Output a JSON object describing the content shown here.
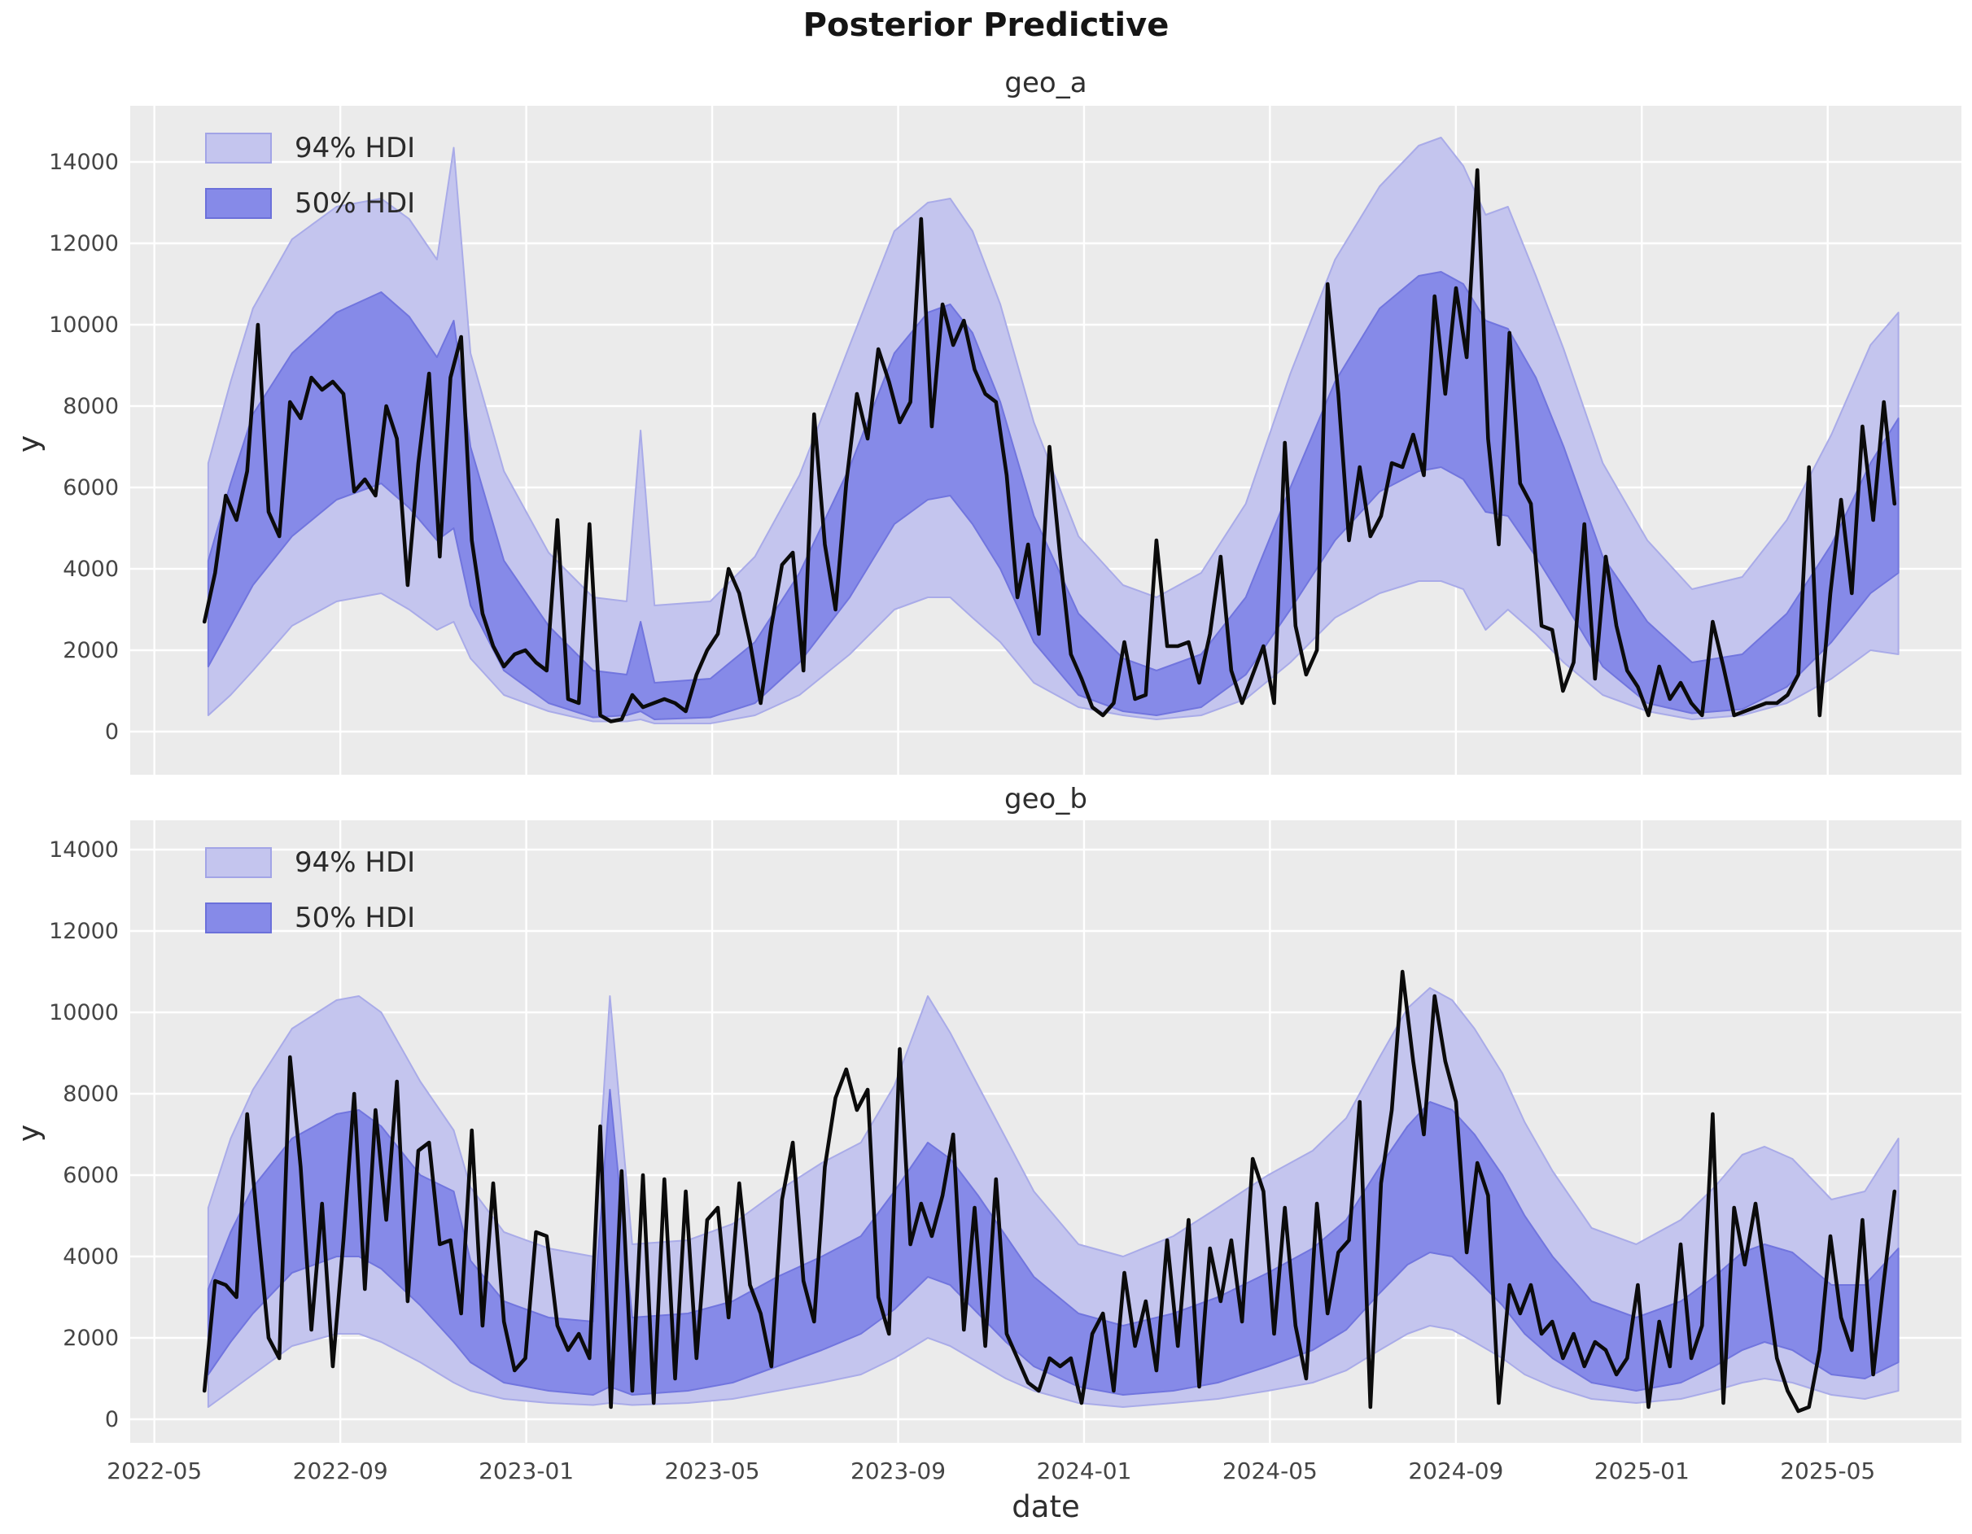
{
  "figure": {
    "title": "Posterior Predictive",
    "xlabel": "date"
  },
  "legend": {
    "hdi94": "94% HDI",
    "hdi50": "50% HDI"
  },
  "colors": {
    "plot_bg": "#ebebeb",
    "grid": "#ffffff",
    "band94": "#c4c5ee",
    "band94_edge": "#a9abe8",
    "band50": "#868ae8",
    "band50_edge": "#7175de",
    "observed": "#0b0b0b",
    "tick_text": "#454545",
    "title_text": "#2e2e2e"
  },
  "chart_data": [
    {
      "type": "line",
      "title": "geo_a",
      "ylabel": "y",
      "legend": [
        "94% HDI",
        "50% HDI"
      ],
      "x_axis": {
        "range": [
          2022.29,
          2025.573
        ],
        "ticks": [
          2022.3333,
          2022.6667,
          2023.0,
          2023.3333,
          2023.6667,
          2024.0,
          2024.3333,
          2024.6667,
          2025.0,
          2025.3333
        ],
        "tick_labels": [
          "2022-05",
          "2022-09",
          "2023-01",
          "2023-05",
          "2023-09",
          "2024-01",
          "2024-05",
          "2024-09",
          "2025-01",
          "2025-05"
        ]
      },
      "y_axis": {
        "range": [
          -1060,
          15380
        ],
        "ticks": [
          0,
          2000,
          4000,
          6000,
          8000,
          10000,
          12000,
          14000
        ]
      },
      "observed": {
        "name": "y",
        "t_start": 2022.423,
        "t_step": 0.019178,
        "values": [
          2700,
          3900,
          5800,
          5200,
          6400,
          10000,
          5400,
          4800,
          8100,
          7700,
          8700,
          8400,
          8600,
          8300,
          5900,
          6200,
          5800,
          8000,
          7200,
          3600,
          6600,
          8800,
          4300,
          8700,
          9700,
          4700,
          2900,
          2100,
          1600,
          1900,
          2000,
          1700,
          1500,
          5200,
          800,
          700,
          5100,
          400,
          250,
          300,
          900,
          600,
          700,
          800,
          700,
          500,
          1400,
          2000,
          2400,
          4000,
          3400,
          2200,
          700,
          2600,
          4100,
          4400,
          1500,
          7800,
          4600,
          3000,
          6100,
          8300,
          7200,
          9400,
          8600,
          7600,
          8100,
          12600,
          7500,
          10500,
          9500,
          10100,
          8900,
          8300,
          8100,
          6300,
          3300,
          4600,
          2400,
          7000,
          4300,
          1900,
          1300,
          600,
          400,
          700,
          2200,
          800,
          900,
          4700,
          2100,
          2100,
          2200,
          1200,
          2400,
          4300,
          1500,
          700,
          1400,
          2100,
          700,
          7100,
          2600,
          1400,
          2000,
          11000,
          8300,
          4700,
          6500,
          4800,
          5300,
          6600,
          6500,
          7300,
          6300,
          10700,
          8300,
          10900,
          9200,
          13800,
          7200,
          4600,
          9800,
          6100,
          5600,
          2600,
          2500,
          1000,
          1700,
          5100,
          1300,
          4300,
          2600,
          1500,
          1100,
          400,
          1600,
          800,
          1200,
          700,
          400,
          2700,
          1600,
          400,
          500,
          600,
          700,
          700,
          900,
          1400,
          6500,
          400,
          3400,
          5700,
          3400,
          7500,
          5200,
          8100,
          5600
        ]
      },
      "hdi": {
        "columns": [
          "t",
          "lower_94",
          "lower_50",
          "upper_50",
          "upper_94"
        ],
        "rows": [
          [
            2022.43,
            400,
            1600,
            4200,
            6600
          ],
          [
            2022.47,
            900,
            2600,
            6100,
            8600
          ],
          [
            2022.51,
            1500,
            3600,
            7800,
            10400
          ],
          [
            2022.58,
            2600,
            4800,
            9300,
            12100
          ],
          [
            2022.66,
            3200,
            5700,
            10300,
            12900
          ],
          [
            2022.74,
            3400,
            6100,
            10800,
            13100
          ],
          [
            2022.79,
            3000,
            5500,
            10200,
            12600
          ],
          [
            2022.84,
            2500,
            4700,
            9200,
            11600
          ],
          [
            2022.87,
            2700,
            5000,
            10100,
            14350
          ],
          [
            2022.9,
            1800,
            3100,
            7000,
            9300
          ],
          [
            2022.96,
            900,
            1500,
            4200,
            6400
          ],
          [
            2023.04,
            500,
            700,
            2600,
            4400
          ],
          [
            2023.12,
            250,
            350,
            1500,
            3300
          ],
          [
            2023.18,
            250,
            400,
            1400,
            3200
          ],
          [
            2023.205,
            300,
            500,
            2700,
            7400
          ],
          [
            2023.23,
            200,
            300,
            1200,
            3100
          ],
          [
            2023.33,
            200,
            350,
            1300,
            3200
          ],
          [
            2023.41,
            400,
            700,
            2200,
            4300
          ],
          [
            2023.49,
            900,
            1700,
            3900,
            6300
          ],
          [
            2023.58,
            1900,
            3300,
            6500,
            9500
          ],
          [
            2023.66,
            3000,
            5100,
            9300,
            12300
          ],
          [
            2023.72,
            3300,
            5700,
            10300,
            13000
          ],
          [
            2023.76,
            3300,
            5800,
            10500,
            13100
          ],
          [
            2023.8,
            2800,
            5100,
            9800,
            12300
          ],
          [
            2023.85,
            2200,
            4000,
            8100,
            10500
          ],
          [
            2023.91,
            1200,
            2200,
            5300,
            7600
          ],
          [
            2023.99,
            600,
            900,
            2900,
            4800
          ],
          [
            2024.07,
            400,
            500,
            1800,
            3600
          ],
          [
            2024.13,
            300,
            400,
            1500,
            3300
          ],
          [
            2024.21,
            400,
            600,
            1900,
            3900
          ],
          [
            2024.29,
            800,
            1400,
            3300,
            5600
          ],
          [
            2024.37,
            1700,
            3000,
            6000,
            8800
          ],
          [
            2024.45,
            2800,
            4700,
            8600,
            11600
          ],
          [
            2024.53,
            3400,
            5900,
            10400,
            13400
          ],
          [
            2024.6,
            3700,
            6400,
            11200,
            14400
          ],
          [
            2024.64,
            3700,
            6500,
            11300,
            14600
          ],
          [
            2024.68,
            3500,
            6200,
            11000,
            13900
          ],
          [
            2024.72,
            2500,
            5400,
            10100,
            12700
          ],
          [
            2024.76,
            3000,
            5300,
            9900,
            12900
          ],
          [
            2024.81,
            2400,
            4300,
            8700,
            11200
          ],
          [
            2024.86,
            1700,
            3200,
            7000,
            9400
          ],
          [
            2024.93,
            900,
            1600,
            4300,
            6600
          ],
          [
            2025.01,
            500,
            700,
            2700,
            4700
          ],
          [
            2025.09,
            300,
            450,
            1700,
            3500
          ],
          [
            2025.18,
            400,
            550,
            1900,
            3800
          ],
          [
            2025.26,
            700,
            1100,
            2900,
            5200
          ],
          [
            2025.34,
            1300,
            2200,
            4600,
            7300
          ],
          [
            2025.41,
            2000,
            3400,
            6600,
            9500
          ],
          [
            2025.46,
            1900,
            3900,
            7700,
            10300
          ]
        ]
      }
    },
    {
      "type": "line",
      "title": "geo_b",
      "ylabel": "y",
      "legend": [
        "94% HDI",
        "50% HDI"
      ],
      "x_axis": {
        "range": [
          2022.29,
          2025.573
        ],
        "ticks": [
          2022.3333,
          2022.6667,
          2023.0,
          2023.3333,
          2023.6667,
          2024.0,
          2024.3333,
          2024.6667,
          2025.0,
          2025.3333
        ],
        "tick_labels": [
          "2022-05",
          "2022-09",
          "2023-01",
          "2023-05",
          "2023-09",
          "2024-01",
          "2024-05",
          "2024-09",
          "2025-01",
          "2025-05"
        ]
      },
      "y_axis": {
        "range": [
          -580,
          14720
        ],
        "ticks": [
          0,
          2000,
          4000,
          6000,
          8000,
          10000,
          12000,
          14000
        ]
      },
      "observed": {
        "name": "y",
        "t_start": 2022.423,
        "t_step": 0.019178,
        "values": [
          700,
          3400,
          3300,
          3000,
          7500,
          4700,
          2000,
          1500,
          8900,
          6200,
          2200,
          5300,
          1300,
          4400,
          8000,
          3200,
          7600,
          4900,
          8300,
          2900,
          6600,
          6800,
          4300,
          4400,
          2600,
          7100,
          2300,
          5800,
          2400,
          1200,
          1500,
          4600,
          4500,
          2300,
          1700,
          2100,
          1500,
          7200,
          300,
          6100,
          700,
          6000,
          400,
          5900,
          1000,
          5600,
          1500,
          4900,
          5200,
          2500,
          5800,
          3300,
          2600,
          1300,
          5400,
          6800,
          3400,
          2400,
          6200,
          7900,
          8600,
          7600,
          8100,
          3000,
          2100,
          9100,
          4300,
          5300,
          4500,
          5500,
          7000,
          2200,
          5200,
          1800,
          5900,
          2100,
          1500,
          900,
          700,
          1500,
          1300,
          1500,
          400,
          2100,
          2600,
          700,
          3600,
          1800,
          2900,
          1200,
          4400,
          1800,
          4900,
          800,
          4200,
          2900,
          4400,
          2400,
          6400,
          5600,
          2100,
          5200,
          2300,
          1000,
          5300,
          2600,
          4100,
          4400,
          7800,
          300,
          5800,
          7600,
          11000,
          8800,
          7000,
          10400,
          8800,
          7800,
          4100,
          6300,
          5500,
          400,
          3300,
          2600,
          3300,
          2100,
          2400,
          1500,
          2100,
          1300,
          1900,
          1700,
          1100,
          1500,
          3300,
          300,
          2400,
          1300,
          4300,
          1500,
          2300,
          7500,
          400,
          5200,
          3800,
          5300,
          3400,
          1500,
          700,
          200,
          300,
          1700,
          4500,
          2500,
          1700,
          4900,
          1100,
          3400,
          5600
        ]
      },
      "hdi": {
        "columns": [
          "t",
          "lower_94",
          "lower_50",
          "upper_50",
          "upper_94"
        ],
        "rows": [
          [
            2022.43,
            300,
            1100,
            3200,
            5200
          ],
          [
            2022.47,
            700,
            1900,
            4600,
            6900
          ],
          [
            2022.51,
            1100,
            2600,
            5700,
            8100
          ],
          [
            2022.58,
            1800,
            3600,
            6900,
            9600
          ],
          [
            2022.66,
            2100,
            4000,
            7500,
            10300
          ],
          [
            2022.7,
            2100,
            4000,
            7600,
            10400
          ],
          [
            2022.74,
            1900,
            3700,
            7200,
            10000
          ],
          [
            2022.81,
            1400,
            2800,
            6000,
            8300
          ],
          [
            2022.87,
            900,
            1900,
            5600,
            7100
          ],
          [
            2022.9,
            700,
            1400,
            3900,
            5700
          ],
          [
            2022.96,
            500,
            900,
            2900,
            4600
          ],
          [
            2023.04,
            400,
            700,
            2500,
            4200
          ],
          [
            2023.12,
            350,
            600,
            2400,
            4000
          ],
          [
            2023.15,
            400,
            800,
            8100,
            10400
          ],
          [
            2023.19,
            350,
            600,
            2500,
            4300
          ],
          [
            2023.29,
            400,
            700,
            2600,
            4400
          ],
          [
            2023.37,
            500,
            900,
            2900,
            4800
          ],
          [
            2023.45,
            700,
            1300,
            3500,
            5600
          ],
          [
            2023.53,
            900,
            1700,
            4000,
            6300
          ],
          [
            2023.6,
            1100,
            2100,
            4500,
            6800
          ],
          [
            2023.66,
            1500,
            2700,
            5600,
            8200
          ],
          [
            2023.72,
            2000,
            3500,
            6800,
            10400
          ],
          [
            2023.76,
            1800,
            3300,
            6400,
            9500
          ],
          [
            2023.81,
            1400,
            2600,
            5500,
            8200
          ],
          [
            2023.86,
            1000,
            1900,
            4500,
            6900
          ],
          [
            2023.91,
            700,
            1300,
            3500,
            5600
          ],
          [
            2023.99,
            400,
            800,
            2600,
            4300
          ],
          [
            2024.07,
            300,
            600,
            2300,
            4000
          ],
          [
            2024.16,
            400,
            700,
            2600,
            4500
          ],
          [
            2024.24,
            500,
            900,
            3000,
            5200
          ],
          [
            2024.33,
            700,
            1300,
            3600,
            6000
          ],
          [
            2024.41,
            900,
            1700,
            4200,
            6600
          ],
          [
            2024.47,
            1200,
            2200,
            4900,
            7400
          ],
          [
            2024.53,
            1700,
            3100,
            6200,
            8900
          ],
          [
            2024.58,
            2100,
            3800,
            7200,
            10100
          ],
          [
            2024.62,
            2300,
            4100,
            7800,
            10600
          ],
          [
            2024.66,
            2200,
            4000,
            7600,
            10300
          ],
          [
            2024.7,
            1900,
            3500,
            7000,
            9600
          ],
          [
            2024.75,
            1500,
            2800,
            6000,
            8500
          ],
          [
            2024.79,
            1100,
            2100,
            5000,
            7300
          ],
          [
            2024.84,
            800,
            1500,
            4000,
            6100
          ],
          [
            2024.91,
            500,
            900,
            2900,
            4700
          ],
          [
            2024.99,
            400,
            700,
            2500,
            4300
          ],
          [
            2025.07,
            500,
            900,
            2900,
            4900
          ],
          [
            2025.13,
            700,
            1300,
            3500,
            5700
          ],
          [
            2025.18,
            900,
            1700,
            4100,
            6500
          ],
          [
            2025.22,
            1000,
            1900,
            4300,
            6700
          ],
          [
            2025.27,
            900,
            1700,
            4100,
            6400
          ],
          [
            2025.34,
            600,
            1100,
            3300,
            5400
          ],
          [
            2025.4,
            500,
            1000,
            3300,
            5600
          ],
          [
            2025.46,
            700,
            1400,
            4200,
            6900
          ]
        ]
      }
    }
  ]
}
